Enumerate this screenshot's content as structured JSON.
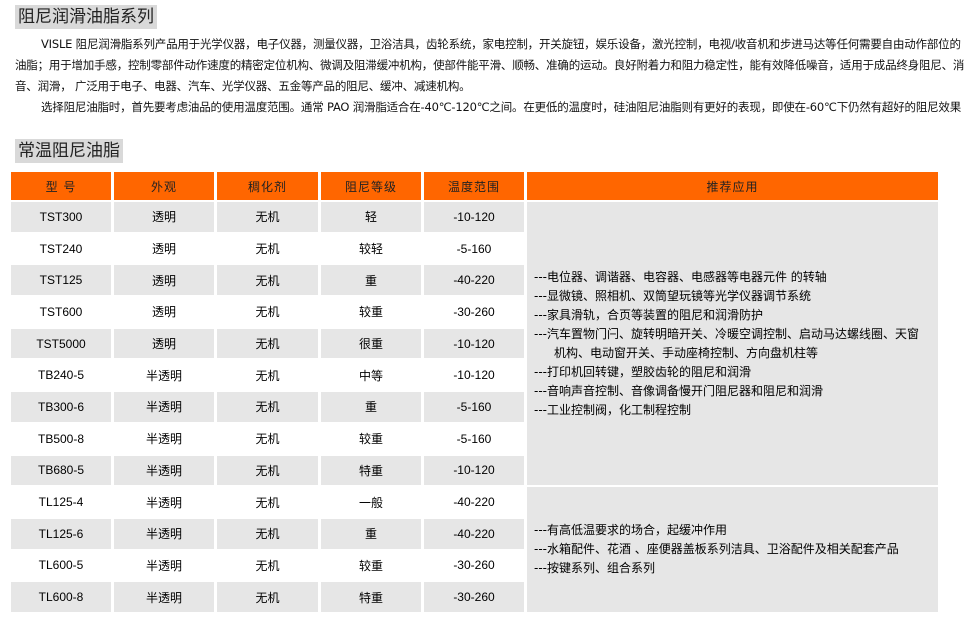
{
  "section1_title": "阻尼润滑油脂系列",
  "intro": [
    "VISLE 阻尼润滑脂系列产品用于光学仪器，电子仪器，测量仪器，卫浴洁具，齿轮系统，家电控制，开关旋钮，娱乐设备，激光控制，电视/收音机和步进马达等任何需要自由动作部位的油脂；用于增加手感，控制零部件动作速度的精密定位机构、微调及阻滞缓冲机构，使部件能平滑、顺畅、准确的运动。良好附着力和阻力稳定性，能有效降低噪音，适用于成品终身阻尼、消音、润滑， 广泛用于电子、电器、汽车、光学仪器、五金等产品的阻尼、缓冲、减速机构。",
    "选择阻尼油脂时，首先要考虑油品的使用温度范围。通常 PAO 润滑脂适合在-40℃-120℃之间。在更低的温度时，硅油阻尼油脂则有更好的表现，即使在-60℃下仍然有超好的阻尼效果"
  ],
  "section2_title": "常温阻尼油脂",
  "table": {
    "headers": [
      "型  号",
      "外观",
      "稠化剂",
      "阻尼等级",
      "温度范围",
      "推荐应用"
    ],
    "rows": [
      [
        "TST300",
        "透明",
        "无机",
        "轻",
        "-10-120"
      ],
      [
        "TST240",
        "透明",
        "无机",
        "较轻",
        "-5-160"
      ],
      [
        "TST125",
        "透明",
        "无机",
        "重",
        "-40-220"
      ],
      [
        "TST600",
        "透明",
        "无机",
        "较重",
        "-30-260"
      ],
      [
        "TST5000",
        "透明",
        "无机",
        "很重",
        "-10-120"
      ],
      [
        "TB240-5",
        "半透明",
        "无机",
        "中等",
        "-10-120"
      ],
      [
        "TB300-6",
        "半透明",
        "无机",
        "重",
        "-5-160"
      ],
      [
        "TB500-8",
        "半透明",
        "无机",
        "较重",
        "-5-160"
      ],
      [
        "TB680-5",
        "半透明",
        "无机",
        "特重",
        "-10-120"
      ],
      [
        "TL125-4",
        "半透明",
        "无机",
        "一般",
        "-40-220"
      ],
      [
        "TL125-6",
        "半透明",
        "无机",
        "重",
        "-40-220"
      ],
      [
        "TL600-5",
        "半透明",
        "无机",
        "较重",
        "-30-260"
      ],
      [
        "TL600-8",
        "半透明",
        "无机",
        "特重",
        "-30-260"
      ]
    ],
    "applications": [
      [
        "---电位器、调谐器、电容器、电感器等电器元件 的转轴",
        "---显微镜、照相机、双筒望玩镜等光学仪器调节系统",
        "---家具滑轨，合页等装置的阻尼和润滑防护",
        "---汽车置物门闩、旋转明暗开关、冷暖空调控制、启动马达螺线圈、天窗",
        "机构、电动窗开关、手动座椅控制、方向盘机柱等",
        "---打印机回转键，塑胶齿轮的阻尼和润滑",
        "---音响声音控制、音像调备慢开门阻尼器和阻尼和润滑",
        "---工业控制阀，化工制程控制"
      ],
      [
        "---有高低温要求的场合，起缓冲作用",
        "---水箱配件、花酒 、座便器盖板系列洁具、卫浴配件及相关配套产品",
        "---按键系列、组合系列"
      ]
    ]
  },
  "colors": {
    "header": "#ff6600",
    "row_alt": "#e6e6e6",
    "banner": "#d9d9d9"
  }
}
